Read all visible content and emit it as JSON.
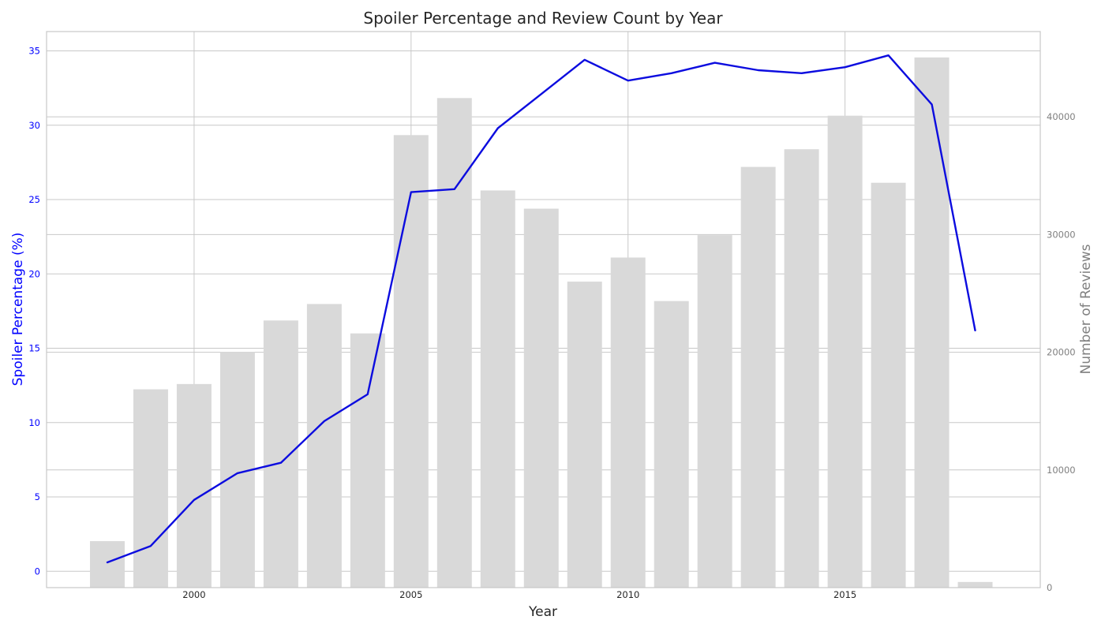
{
  "chart_data": {
    "type": "bar",
    "title": "Spoiler Percentage and Review Count by Year",
    "xlabel": "Year",
    "ylabel_left": "Spoiler Percentage (%)",
    "ylabel_right": "Number of Reviews",
    "x": [
      1998,
      1999,
      2000,
      2001,
      2002,
      2003,
      2004,
      2005,
      2006,
      2007,
      2008,
      2009,
      2010,
      2011,
      2012,
      2013,
      2014,
      2015,
      2016,
      2017,
      2018
    ],
    "x_ticks": [
      "2000",
      "2005",
      "2010",
      "2015"
    ],
    "x_tick_values": [
      2000,
      2005,
      2010,
      2015
    ],
    "y_left_ticks": [
      "0",
      "5",
      "10",
      "15",
      "20",
      "25",
      "30",
      "35"
    ],
    "y_left_tick_values": [
      0,
      5,
      10,
      15,
      20,
      25,
      30,
      35
    ],
    "y_right_ticks": [
      "0",
      "10000",
      "20000",
      "30000",
      "40000"
    ],
    "y_right_tick_values": [
      0,
      10000,
      20000,
      30000,
      40000
    ],
    "xlim": [
      1996.6,
      2019.5
    ],
    "ylim_left": [
      -1.1,
      36.3
    ],
    "ylim_right": [
      0,
      47250
    ],
    "grid": true,
    "series": [
      {
        "name": "Number of Reviews",
        "type": "bar",
        "axis": "right",
        "color": "#d9d9d9",
        "values": [
          3950,
          16850,
          17300,
          20000,
          22700,
          24100,
          21600,
          38450,
          41600,
          33750,
          32200,
          26000,
          28050,
          24350,
          29950,
          35750,
          37250,
          40100,
          34400,
          45050,
          480
        ]
      },
      {
        "name": "Spoiler Percentage",
        "type": "line",
        "axis": "left",
        "color": "#0c0cdf",
        "values": [
          0.6,
          1.7,
          4.8,
          6.6,
          7.3,
          10.1,
          11.9,
          25.5,
          25.7,
          29.8,
          32.1,
          34.4,
          33.0,
          33.5,
          34.2,
          33.7,
          33.5,
          33.9,
          34.7,
          31.4,
          16.2
        ]
      }
    ],
    "colors": {
      "left_axis": "#0000ff",
      "right_axis": "#808080",
      "grid": "#c8c8c8",
      "frame": "#c8c8c8",
      "text": "#262626"
    }
  }
}
